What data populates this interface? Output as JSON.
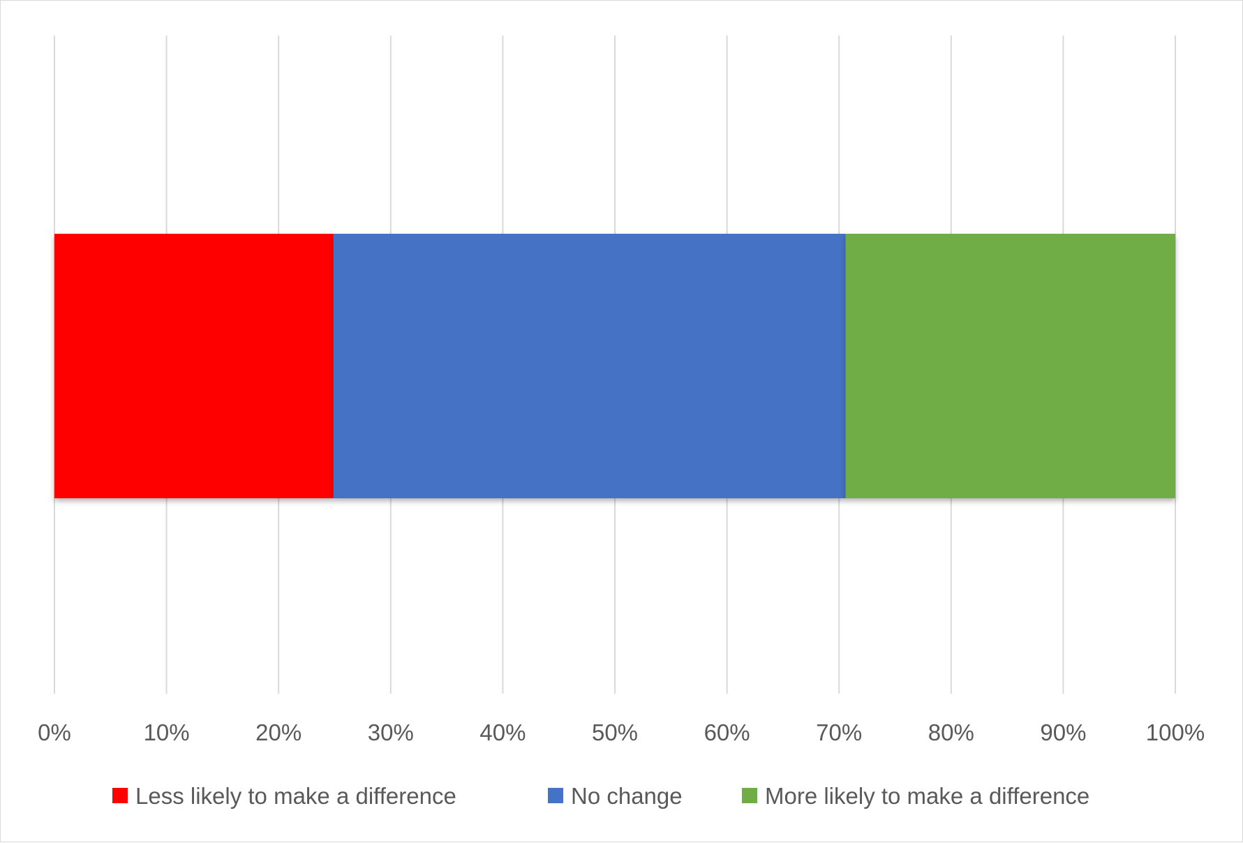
{
  "chart_data": {
    "type": "bar",
    "orientation": "horizontal",
    "stacked": "percent",
    "categories": [
      ""
    ],
    "series": [
      {
        "name": "Less likely to make a difference",
        "values": [
          24.9
        ],
        "color": "#ff0000"
      },
      {
        "name": "No change",
        "values": [
          45.7
        ],
        "color": "#4472c4"
      },
      {
        "name": "More likely to make a difference",
        "values": [
          29.4
        ],
        "color": "#70ad47"
      }
    ],
    "x_ticks": [
      "0%",
      "10%",
      "20%",
      "30%",
      "40%",
      "50%",
      "60%",
      "70%",
      "80%",
      "90%",
      "100%"
    ],
    "xlim": [
      0,
      100
    ],
    "title": "",
    "xlabel": "",
    "ylabel": "",
    "grid": "vertical",
    "legend_position": "bottom",
    "gridline_color": "#d9d9d9",
    "text_color": "#595959"
  }
}
